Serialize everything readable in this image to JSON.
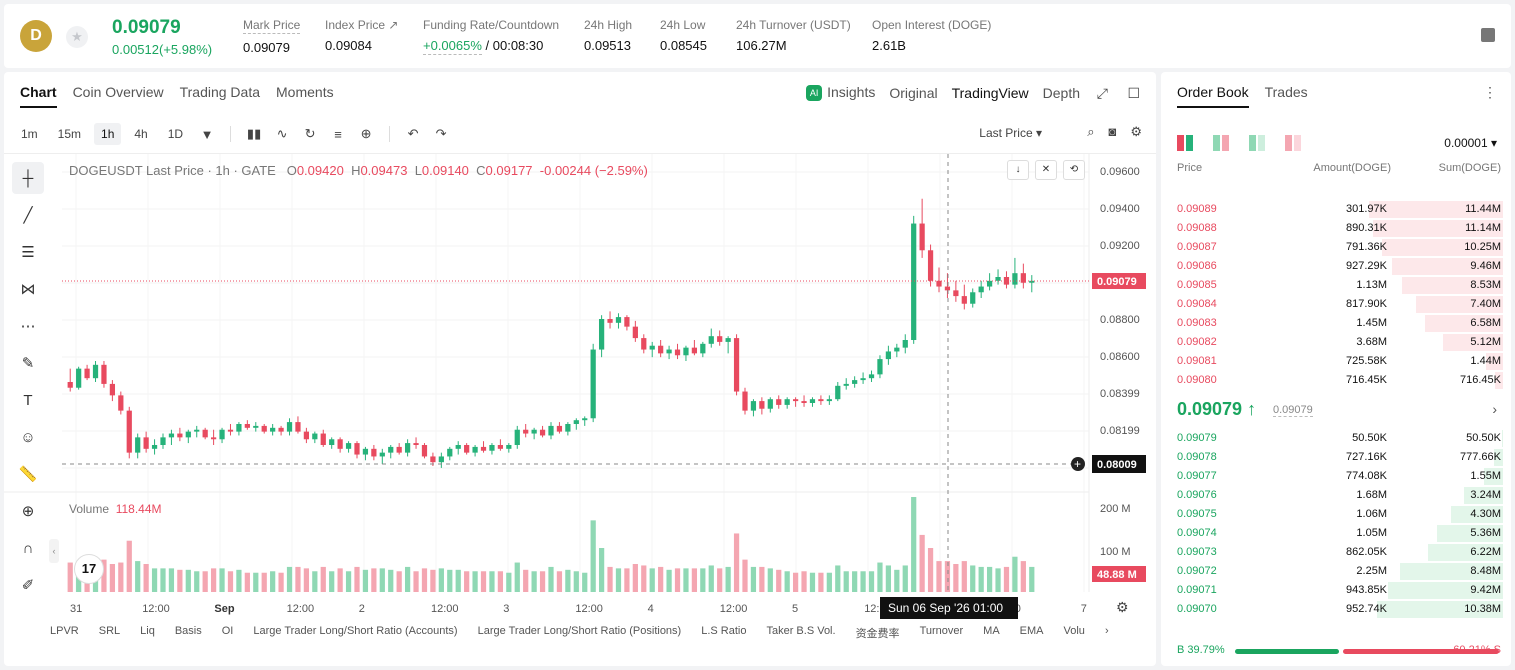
{
  "header": {
    "logo_text": "D",
    "last_price": "0.09079",
    "change": "0.00512(+5.98%)",
    "stats": [
      {
        "label": "Mark Price",
        "value": "0.09079"
      },
      {
        "label": "Index Price ↗",
        "value": "0.09084"
      },
      {
        "label": "Funding Rate/Countdown",
        "value_green": "+0.0065%",
        "value": " / 00:08:30"
      },
      {
        "label": "24h High",
        "value": "0.09513"
      },
      {
        "label": "24h Low",
        "value": "0.08545"
      },
      {
        "label": "24h Turnover (USDT)",
        "value": "106.27M"
      },
      {
        "label": "Open Interest (DOGE)",
        "value": "2.61B"
      }
    ]
  },
  "chart_tabs": [
    "Chart",
    "Coin Overview",
    "Trading Data",
    "Moments"
  ],
  "view_tabs": {
    "insights": "Insights",
    "original": "Original",
    "tradingview": "TradingView",
    "depth": "Depth"
  },
  "intervals": [
    "1m",
    "15m",
    "1h",
    "4h",
    "1D"
  ],
  "toolbar": {
    "last_price_selector": "Last Price ▾"
  },
  "chart_legend": {
    "symbol": "DOGEUSDT Last Price · 1h · GATE",
    "o_label": "O",
    "o": "0.09420",
    "h_label": "H",
    "h": "0.09473",
    "l_label": "L",
    "l": "0.09140",
    "c_label": "C",
    "c": "0.09177",
    "chg": "-0.00244 (−2.59%)"
  },
  "volume_legend": {
    "label": "Volume",
    "value": "118.44M"
  },
  "price_scale": [
    "0.09600",
    "0.09400",
    "0.09200",
    "0.09000",
    "0.08800",
    "0.08600",
    "0.08399",
    "0.08199"
  ],
  "last_price_tag": "0.09079",
  "cursor_price_tag": "0.08009",
  "volume_scale": [
    "200 M",
    "100 M"
  ],
  "volume_tag": "48.88 M",
  "time_axis": [
    "31",
    "12:00",
    "Sep",
    "12:00",
    "2",
    "12:00",
    "3",
    "12:00",
    "4",
    "12:00",
    "5",
    "12:00",
    "6",
    "00",
    "7"
  ],
  "cursor_time": "Sun 06 Sep '26   01:00",
  "tv_logo": "17",
  "indicators": [
    "LPVR",
    "SRL",
    "Liq",
    "Basis",
    "OI",
    "Large Trader Long/Short Ratio (Accounts)",
    "Large Trader Long/Short Ratio (Positions)",
    "L.S Ratio",
    "Taker B.S Vol.",
    "资金费率",
    "Turnover",
    "MA",
    "EMA",
    "Volu"
  ],
  "chart_data": {
    "type": "candlestick",
    "interval": "1h",
    "ylim": [
      0.08,
      0.0965
    ],
    "candles": [
      [
        0.0855,
        0.0862,
        0.085,
        0.0852
      ],
      [
        0.0852,
        0.0863,
        0.0851,
        0.0862
      ],
      [
        0.0862,
        0.0864,
        0.0856,
        0.0857
      ],
      [
        0.0857,
        0.0866,
        0.0855,
        0.0864
      ],
      [
        0.0864,
        0.0866,
        0.0852,
        0.0854
      ],
      [
        0.0854,
        0.0856,
        0.0845,
        0.0848
      ],
      [
        0.0848,
        0.085,
        0.0838,
        0.084
      ],
      [
        0.084,
        0.0842,
        0.0815,
        0.0818
      ],
      [
        0.0818,
        0.0828,
        0.0815,
        0.0826
      ],
      [
        0.0826,
        0.0829,
        0.0818,
        0.082
      ],
      [
        0.082,
        0.0825,
        0.0817,
        0.0822
      ],
      [
        0.0822,
        0.0828,
        0.082,
        0.0826
      ],
      [
        0.0826,
        0.083,
        0.0822,
        0.0828
      ],
      [
        0.0828,
        0.0831,
        0.0824,
        0.0826
      ],
      [
        0.0826,
        0.083,
        0.0823,
        0.0829
      ],
      [
        0.0829,
        0.0832,
        0.0826,
        0.083
      ],
      [
        0.083,
        0.0831,
        0.0825,
        0.0826
      ],
      [
        0.0826,
        0.083,
        0.0822,
        0.0825
      ],
      [
        0.0825,
        0.0831,
        0.0823,
        0.083
      ],
      [
        0.083,
        0.0833,
        0.0827,
        0.0829
      ],
      [
        0.0829,
        0.0834,
        0.0827,
        0.0833
      ],
      [
        0.0833,
        0.0835,
        0.083,
        0.0831
      ],
      [
        0.0831,
        0.0834,
        0.0829,
        0.0832
      ],
      [
        0.0832,
        0.0833,
        0.0828,
        0.0829
      ],
      [
        0.0829,
        0.0833,
        0.0827,
        0.0831
      ],
      [
        0.0831,
        0.0832,
        0.0827,
        0.0829
      ],
      [
        0.0829,
        0.0836,
        0.0827,
        0.0834
      ],
      [
        0.0834,
        0.0837,
        0.0828,
        0.0829
      ],
      [
        0.0829,
        0.0831,
        0.0823,
        0.0825
      ],
      [
        0.0825,
        0.0829,
        0.0823,
        0.0828
      ],
      [
        0.0828,
        0.083,
        0.0821,
        0.0822
      ],
      [
        0.0822,
        0.0826,
        0.082,
        0.0825
      ],
      [
        0.0825,
        0.0826,
        0.0818,
        0.082
      ],
      [
        0.082,
        0.0824,
        0.0818,
        0.0823
      ],
      [
        0.0823,
        0.0824,
        0.0815,
        0.0817
      ],
      [
        0.0817,
        0.0821,
        0.0814,
        0.082
      ],
      [
        0.082,
        0.0822,
        0.0814,
        0.0816
      ],
      [
        0.0816,
        0.082,
        0.0812,
        0.0818
      ],
      [
        0.0818,
        0.0822,
        0.0815,
        0.0821
      ],
      [
        0.0821,
        0.0823,
        0.0817,
        0.0818
      ],
      [
        0.0818,
        0.0825,
        0.0816,
        0.0823
      ],
      [
        0.0823,
        0.0826,
        0.082,
        0.0822
      ],
      [
        0.0822,
        0.0823,
        0.0815,
        0.0816
      ],
      [
        0.0816,
        0.0818,
        0.0811,
        0.0813
      ],
      [
        0.0813,
        0.0818,
        0.081,
        0.0816
      ],
      [
        0.0816,
        0.0821,
        0.0814,
        0.082
      ],
      [
        0.082,
        0.0824,
        0.0817,
        0.0822
      ],
      [
        0.0822,
        0.0823,
        0.0817,
        0.0818
      ],
      [
        0.0818,
        0.0822,
        0.0816,
        0.0821
      ],
      [
        0.0821,
        0.0824,
        0.0818,
        0.0819
      ],
      [
        0.0819,
        0.0823,
        0.0817,
        0.0822
      ],
      [
        0.0822,
        0.0825,
        0.0819,
        0.082
      ],
      [
        0.082,
        0.0823,
        0.0818,
        0.0822
      ],
      [
        0.0822,
        0.0832,
        0.082,
        0.083
      ],
      [
        0.083,
        0.0833,
        0.0826,
        0.0828
      ],
      [
        0.0828,
        0.0831,
        0.0825,
        0.083
      ],
      [
        0.083,
        0.0832,
        0.0826,
        0.0827
      ],
      [
        0.0827,
        0.0834,
        0.0825,
        0.0832
      ],
      [
        0.0832,
        0.0834,
        0.0828,
        0.0829
      ],
      [
        0.0829,
        0.0834,
        0.0827,
        0.0833
      ],
      [
        0.0833,
        0.0836,
        0.083,
        0.0835
      ],
      [
        0.0835,
        0.0837,
        0.0832,
        0.0836
      ],
      [
        0.0836,
        0.0875,
        0.0834,
        0.0872
      ],
      [
        0.0872,
        0.089,
        0.0868,
        0.0888
      ],
      [
        0.0888,
        0.0892,
        0.0883,
        0.0886
      ],
      [
        0.0886,
        0.0891,
        0.0883,
        0.0889
      ],
      [
        0.0889,
        0.089,
        0.0882,
        0.0884
      ],
      [
        0.0884,
        0.0887,
        0.0876,
        0.0878
      ],
      [
        0.0878,
        0.088,
        0.087,
        0.0872
      ],
      [
        0.0872,
        0.0876,
        0.0868,
        0.0874
      ],
      [
        0.0874,
        0.0877,
        0.0868,
        0.087
      ],
      [
        0.087,
        0.0874,
        0.0867,
        0.0872
      ],
      [
        0.0872,
        0.0875,
        0.0867,
        0.0869
      ],
      [
        0.0869,
        0.0874,
        0.0866,
        0.0873
      ],
      [
        0.0873,
        0.0877,
        0.0869,
        0.087
      ],
      [
        0.087,
        0.0876,
        0.0868,
        0.0875
      ],
      [
        0.0875,
        0.0883,
        0.0873,
        0.0879
      ],
      [
        0.0879,
        0.0882,
        0.0874,
        0.0876
      ],
      [
        0.0876,
        0.0879,
        0.087,
        0.0878
      ],
      [
        0.0878,
        0.088,
        0.0848,
        0.085
      ],
      [
        0.085,
        0.0852,
        0.0838,
        0.084
      ],
      [
        0.084,
        0.0846,
        0.0837,
        0.0845
      ],
      [
        0.0845,
        0.0847,
        0.0838,
        0.0841
      ],
      [
        0.0841,
        0.0847,
        0.0839,
        0.0846
      ],
      [
        0.0846,
        0.0848,
        0.0841,
        0.0843
      ],
      [
        0.0843,
        0.0847,
        0.0841,
        0.0846
      ],
      [
        0.0846,
        0.0847,
        0.0842,
        0.0845
      ],
      [
        0.0845,
        0.0848,
        0.0842,
        0.0844
      ],
      [
        0.0844,
        0.0847,
        0.0842,
        0.0846
      ],
      [
        0.0846,
        0.0848,
        0.0843,
        0.0845
      ],
      [
        0.0845,
        0.0848,
        0.0843,
        0.0846
      ],
      [
        0.0846,
        0.0855,
        0.0845,
        0.0853
      ],
      [
        0.0853,
        0.0857,
        0.0851,
        0.0854
      ],
      [
        0.0854,
        0.0858,
        0.0852,
        0.0856
      ],
      [
        0.0856,
        0.086,
        0.0854,
        0.0857
      ],
      [
        0.0857,
        0.0861,
        0.0855,
        0.0859
      ],
      [
        0.0859,
        0.0869,
        0.0857,
        0.0867
      ],
      [
        0.0867,
        0.0874,
        0.0864,
        0.0871
      ],
      [
        0.0871,
        0.0875,
        0.0868,
        0.0873
      ],
      [
        0.0873,
        0.088,
        0.087,
        0.0877
      ],
      [
        0.0877,
        0.0942,
        0.0875,
        0.0938
      ],
      [
        0.0938,
        0.0951,
        0.092,
        0.0924
      ],
      [
        0.0924,
        0.0927,
        0.0905,
        0.0908
      ],
      [
        0.0908,
        0.0915,
        0.0902,
        0.0905
      ],
      [
        0.0905,
        0.0912,
        0.0899,
        0.0903
      ],
      [
        0.0903,
        0.0908,
        0.0897,
        0.09
      ],
      [
        0.09,
        0.0906,
        0.0893,
        0.0896
      ],
      [
        0.0896,
        0.0904,
        0.0894,
        0.0902
      ],
      [
        0.0902,
        0.0908,
        0.0899,
        0.0905
      ],
      [
        0.0905,
        0.0912,
        0.0903,
        0.0908
      ],
      [
        0.0908,
        0.0914,
        0.0906,
        0.091
      ],
      [
        0.091,
        0.0913,
        0.0904,
        0.0906
      ],
      [
        0.0906,
        0.092,
        0.0904,
        0.0912
      ],
      [
        0.0912,
        0.0917,
        0.0904,
        0.0907
      ],
      [
        0.0907,
        0.0911,
        0.0902,
        0.0908
      ]
    ]
  },
  "order_book": {
    "tabs": [
      "Order Book",
      "Trades"
    ],
    "precision": "0.00001 ▾",
    "headers": {
      "price": "Price",
      "amount": "Amount(DOGE)",
      "sum": "Sum(DOGE)"
    },
    "asks": [
      {
        "price": "0.09089",
        "amount": "301.97K",
        "sum": "11.44M",
        "depth": 1.0
      },
      {
        "price": "0.09088",
        "amount": "890.31K",
        "sum": "11.14M",
        "depth": 0.97
      },
      {
        "price": "0.09087",
        "amount": "791.36K",
        "sum": "10.25M",
        "depth": 0.9
      },
      {
        "price": "0.09086",
        "amount": "927.29K",
        "sum": "9.46M",
        "depth": 0.83
      },
      {
        "price": "0.09085",
        "amount": "1.13M",
        "sum": "8.53M",
        "depth": 0.75
      },
      {
        "price": "0.09084",
        "amount": "817.90K",
        "sum": "7.40M",
        "depth": 0.65
      },
      {
        "price": "0.09083",
        "amount": "1.45M",
        "sum": "6.58M",
        "depth": 0.58
      },
      {
        "price": "0.09082",
        "amount": "3.68M",
        "sum": "5.12M",
        "depth": 0.45
      },
      {
        "price": "0.09081",
        "amount": "725.58K",
        "sum": "1.44M",
        "depth": 0.13
      },
      {
        "price": "0.09080",
        "amount": "716.45K",
        "sum": "716.45K",
        "depth": 0.06
      }
    ],
    "mid_price": "0.09079 ↑",
    "mid_sub": "0.09079",
    "bids": [
      {
        "price": "0.09079",
        "amount": "50.50K",
        "sum": "50.50K",
        "depth": 0.005
      },
      {
        "price": "0.09078",
        "amount": "727.16K",
        "sum": "777.66K",
        "depth": 0.07
      },
      {
        "price": "0.09077",
        "amount": "774.08K",
        "sum": "1.55M",
        "depth": 0.14
      },
      {
        "price": "0.09076",
        "amount": "1.68M",
        "sum": "3.24M",
        "depth": 0.29
      },
      {
        "price": "0.09075",
        "amount": "1.06M",
        "sum": "4.30M",
        "depth": 0.39
      },
      {
        "price": "0.09074",
        "amount": "1.05M",
        "sum": "5.36M",
        "depth": 0.49
      },
      {
        "price": "0.09073",
        "amount": "862.05K",
        "sum": "6.22M",
        "depth": 0.56
      },
      {
        "price": "0.09072",
        "amount": "2.25M",
        "sum": "8.48M",
        "depth": 0.77
      },
      {
        "price": "0.09071",
        "amount": "943.85K",
        "sum": "9.42M",
        "depth": 0.86
      },
      {
        "price": "0.09070",
        "amount": "952.74K",
        "sum": "10.38M",
        "depth": 0.94
      }
    ],
    "buy_ratio": "B 39.79%",
    "sell_ratio": "60.21% S",
    "buy_fraction": 0.3979
  },
  "colors": {
    "up": "#26b27a",
    "down": "#e84a5f",
    "up_vol": "#8fd8b4",
    "down_vol": "#f4a6b1"
  }
}
